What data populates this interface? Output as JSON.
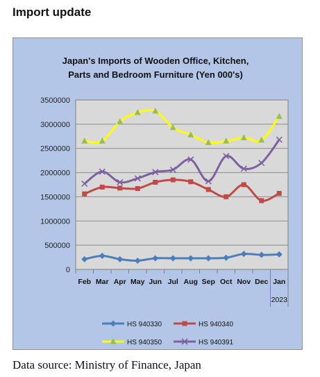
{
  "page": {
    "heading": "Import update",
    "source": "Data source: Ministry of Finance, Japan"
  },
  "chart_data": {
    "type": "line",
    "title_line1": "Japan's Imports of  Wooden  Office, Kitchen,",
    "title_line2": "Parts and Bedroom Furniture (Yen 000's)",
    "categories": [
      "Feb",
      "Mar",
      "Apr",
      "May",
      "Jun",
      "Jul",
      "Aug",
      "Sep",
      "Oct",
      "Nov",
      "Dec",
      "Jan"
    ],
    "year_label": "2023",
    "ylim": [
      0,
      3500000
    ],
    "yticks": [
      0,
      500000,
      1000000,
      1500000,
      2000000,
      2500000,
      3000000,
      3500000
    ],
    "ytick_labels": [
      "0",
      "500000",
      "1000000",
      "1500000",
      "2000000",
      "2500000",
      "3000000",
      "3500000"
    ],
    "grid": true,
    "legend_position": "bottom",
    "colors": {
      "outer_bg": "#b4c6e7",
      "plot_bg": "#d9d9d9"
    },
    "series": [
      {
        "name": "HS 940330",
        "color": "#4a7ebb",
        "marker": "diamond",
        "values": [
          210000,
          280000,
          210000,
          180000,
          230000,
          230000,
          230000,
          230000,
          240000,
          320000,
          300000,
          310000
        ]
      },
      {
        "name": "HS 940340",
        "color": "#be4b48",
        "marker": "square",
        "values": [
          1560000,
          1700000,
          1680000,
          1670000,
          1800000,
          1850000,
          1810000,
          1650000,
          1500000,
          1750000,
          1420000,
          1570000
        ]
      },
      {
        "name": "HS 940350",
        "color": "#ffff00",
        "marker": "triangle",
        "values": [
          2650000,
          2650000,
          3050000,
          3240000,
          3270000,
          2930000,
          2780000,
          2620000,
          2650000,
          2720000,
          2670000,
          3160000
        ]
      },
      {
        "name": "HS 940391",
        "color": "#7d60a0",
        "marker": "x",
        "values": [
          1770000,
          2020000,
          1800000,
          1880000,
          2010000,
          2060000,
          2270000,
          1820000,
          2340000,
          2080000,
          2200000,
          2680000
        ]
      }
    ]
  }
}
